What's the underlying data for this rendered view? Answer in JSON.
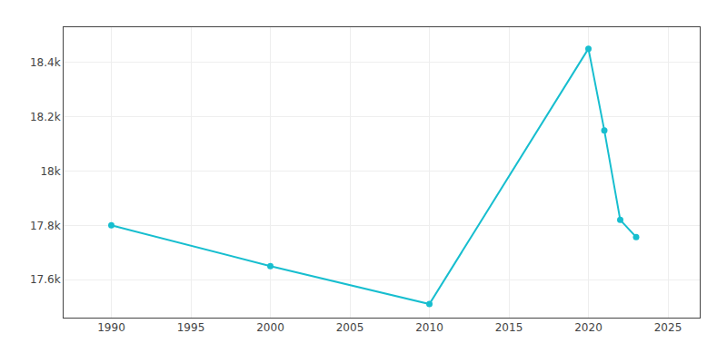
{
  "chart_data": {
    "type": "line",
    "x": [
      1990,
      2000,
      2010,
      2020,
      2021,
      2022,
      2023
    ],
    "values": [
      17800,
      17650,
      17510,
      18451,
      18150,
      17820,
      17757
    ],
    "color": "#17becf",
    "marker": "circle",
    "xlim": [
      1987,
      2027
    ],
    "ylim": [
      17460,
      18530
    ],
    "xticks": [
      1990,
      1995,
      2000,
      2005,
      2010,
      2015,
      2020,
      2025
    ],
    "yticks": [
      {
        "value": 17600,
        "label": "17.6k"
      },
      {
        "value": 17800,
        "label": "17.8k"
      },
      {
        "value": 18000,
        "label": "18k"
      },
      {
        "value": 18200,
        "label": "18.2k"
      },
      {
        "value": 18400,
        "label": "18.4k"
      }
    ],
    "grid": true
  }
}
